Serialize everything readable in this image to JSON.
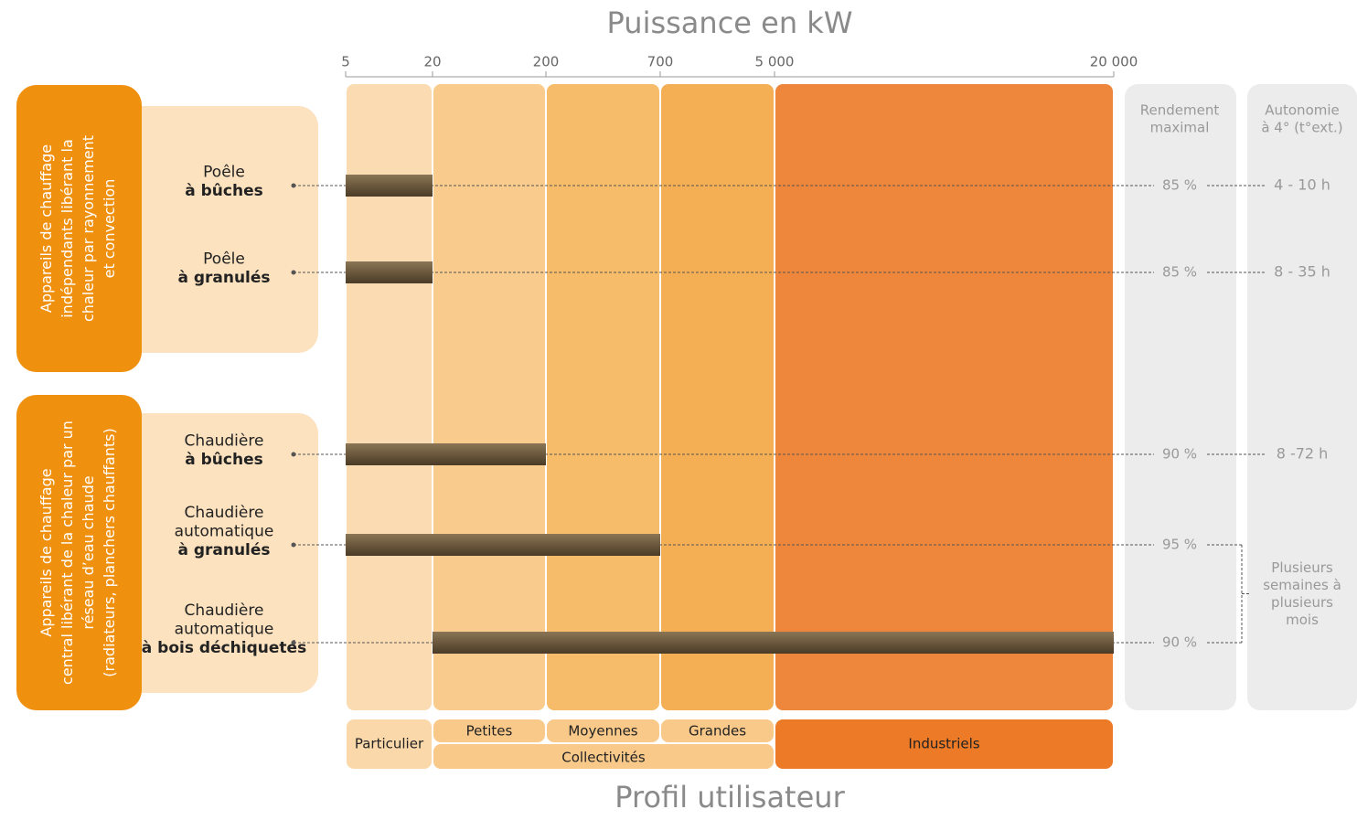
{
  "chart_data": {
    "type": "range-bar",
    "title": "Puissance en kW",
    "xlabel": "Profil utilisateur",
    "xlim": [
      5,
      20000
    ],
    "xticks": [
      5,
      20,
      200,
      700,
      {
        "value": 5000,
        "label": "5 000"
      },
      {
        "value": 20000,
        "label": "20 000"
      }
    ],
    "bar_color": "#6b583d",
    "columns": [
      [
        "Rendement",
        "maximal"
      ],
      [
        "Autonomie",
        "à 4° (t°ext.)"
      ]
    ],
    "groups": [
      {
        "label": [
          "Appareils de chauffage",
          "indépendants libérant la",
          "chaleur par rayonnement",
          "et convection"
        ],
        "color": "#f0900f",
        "items": [
          {
            "name": [
              "Poêle",
              "à bûches"
            ],
            "start": 5,
            "end": 20,
            "efficiency": "85 %",
            "autonomy": "4 - 10 h"
          },
          {
            "name": [
              "Poêle",
              "à granulés"
            ],
            "start": 5,
            "end": 20,
            "efficiency": "85 %",
            "autonomy": "8 - 35 h"
          }
        ]
      },
      {
        "label": [
          "Appareils de chauffage",
          "central libérant de la chaleur  par un",
          "réseau d’eau chaude",
          "(radiateurs, planchers chauffants)"
        ],
        "color": "#f0900f",
        "autonomy_shared": [
          "Plusieurs",
          "semaines à",
          "plusieurs",
          "mois"
        ],
        "items": [
          {
            "name": [
              "Chaudière",
              "à bûches"
            ],
            "start": 5,
            "end": 200,
            "efficiency": "90 %",
            "autonomy": "8 -72 h"
          },
          {
            "name": [
              "Chaudière",
              "automatique",
              "à granulés"
            ],
            "start": 5,
            "end": 700,
            "efficiency": "95 %"
          },
          {
            "name": [
              "Chaudière",
              "automatique",
              "à bois déchiquetés"
            ],
            "start": 20,
            "end": 20000,
            "efficiency": "90 %"
          }
        ]
      }
    ],
    "profiles": [
      {
        "label": "Particulier",
        "from": 5,
        "to": 20,
        "color": "#fbd8aa"
      },
      {
        "label": "Petites",
        "from": 20,
        "to": 200,
        "color": "#f8c57f"
      },
      {
        "label": "Moyennes",
        "from": 200,
        "to": 700,
        "color": "#f6b55a"
      },
      {
        "label": "Grandes",
        "from": 700,
        "to": 5000,
        "color": "#f3a641"
      },
      {
        "label": "Industriels",
        "from": 5000,
        "to": 20000,
        "color": "#ec7a26"
      }
    ],
    "profile_group": {
      "label": "Collectivités",
      "from": 20,
      "to": 5000
    }
  }
}
